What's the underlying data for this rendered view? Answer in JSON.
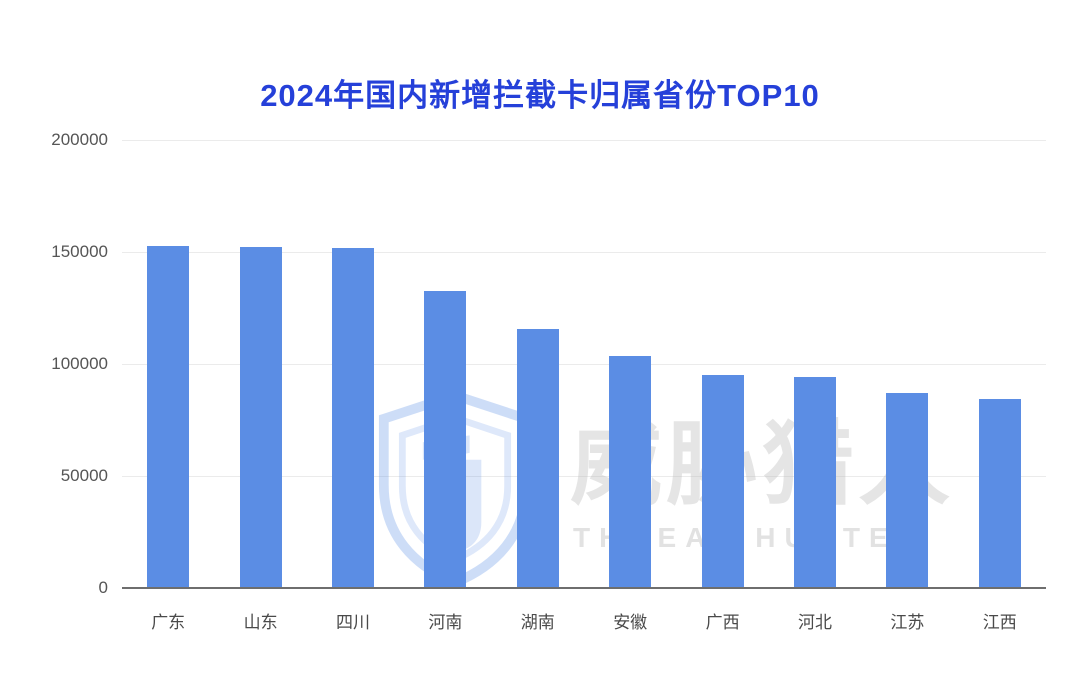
{
  "chart_data": {
    "type": "bar",
    "title": "2024年国内新增拦截卡归属省份TOP10",
    "categories": [
      "广东",
      "山东",
      "四川",
      "河南",
      "湖南",
      "安徽",
      "广西",
      "河北",
      "江苏",
      "江西"
    ],
    "values": [
      152800,
      152100,
      152000,
      132500,
      115500,
      103800,
      95000,
      94300,
      87000,
      84500
    ],
    "xlabel": "",
    "ylabel": "",
    "y_ticks": [
      0,
      50000,
      100000,
      150000,
      200000
    ],
    "ylim": [
      0,
      200000
    ],
    "grid": true,
    "legend_position": "none",
    "bar_color": "#5B8DE4",
    "title_color": "#2540D9",
    "gridline_color": "#ebebeb",
    "axis_line_color": "#6e6e6e",
    "tick_label_color": "#555555"
  },
  "watermark": {
    "cn": "威胁猎人",
    "en": "THREAT HUNTER",
    "logo": "threat-hunter-shield"
  }
}
